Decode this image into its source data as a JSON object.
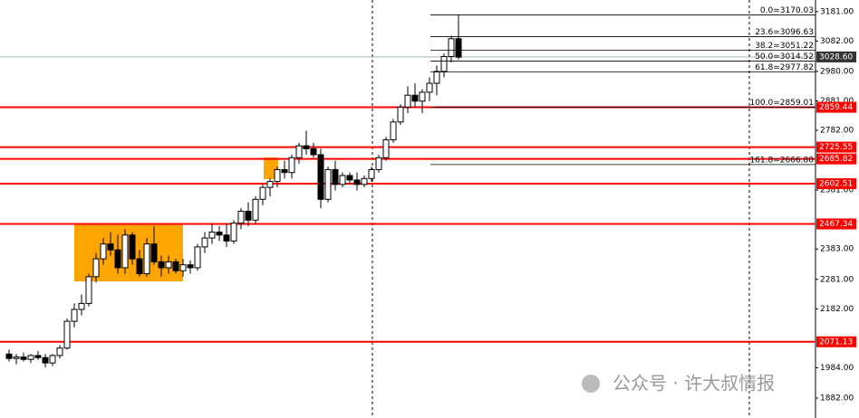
{
  "chart_data": {
    "type": "candlestick",
    "candles": [
      [
        2030,
        2045,
        2005,
        2015
      ],
      [
        2015,
        2030,
        1995,
        2020
      ],
      [
        2020,
        2035,
        2005,
        2012
      ],
      [
        2012,
        2030,
        2000,
        2025
      ],
      [
        2025,
        2040,
        2010,
        2018
      ],
      [
        2018,
        2030,
        1985,
        2000
      ],
      [
        2000,
        2030,
        1990,
        2025
      ],
      [
        2025,
        2060,
        2015,
        2050
      ],
      [
        2050,
        2150,
        2045,
        2140
      ],
      [
        2140,
        2200,
        2120,
        2180
      ],
      [
        2180,
        2230,
        2160,
        2200
      ],
      [
        2200,
        2300,
        2190,
        2290
      ],
      [
        2290,
        2370,
        2270,
        2350
      ],
      [
        2350,
        2420,
        2330,
        2400
      ],
      [
        2400,
        2440,
        2360,
        2380
      ],
      [
        2380,
        2430,
        2300,
        2320
      ],
      [
        2320,
        2450,
        2300,
        2430
      ],
      [
        2430,
        2440,
        2330,
        2350
      ],
      [
        2350,
        2380,
        2290,
        2300
      ],
      [
        2300,
        2420,
        2290,
        2400
      ],
      [
        2400,
        2460,
        2330,
        2340
      ],
      [
        2340,
        2360,
        2290,
        2320
      ],
      [
        2320,
        2360,
        2300,
        2340
      ],
      [
        2340,
        2350,
        2300,
        2310
      ],
      [
        2310,
        2350,
        2290,
        2330
      ],
      [
        2330,
        2345,
        2300,
        2320
      ],
      [
        2320,
        2400,
        2310,
        2390
      ],
      [
        2390,
        2440,
        2370,
        2420
      ],
      [
        2420,
        2470,
        2400,
        2440
      ],
      [
        2440,
        2460,
        2410,
        2430
      ],
      [
        2430,
        2470,
        2390,
        2410
      ],
      [
        2410,
        2480,
        2400,
        2470
      ],
      [
        2470,
        2520,
        2450,
        2510
      ],
      [
        2510,
        2540,
        2460,
        2480
      ],
      [
        2480,
        2560,
        2470,
        2550
      ],
      [
        2550,
        2600,
        2530,
        2590
      ],
      [
        2590,
        2620,
        2560,
        2610
      ],
      [
        2610,
        2660,
        2590,
        2650
      ],
      [
        2650,
        2680,
        2620,
        2640
      ],
      [
        2640,
        2700,
        2620,
        2690
      ],
      [
        2690,
        2740,
        2670,
        2730
      ],
      [
        2730,
        2780,
        2700,
        2720
      ],
      [
        2720,
        2740,
        2690,
        2700
      ],
      [
        2700,
        2720,
        2520,
        2550
      ],
      [
        2550,
        2660,
        2540,
        2650
      ],
      [
        2650,
        2680,
        2580,
        2600
      ],
      [
        2600,
        2640,
        2590,
        2630
      ],
      [
        2630,
        2640,
        2600,
        2615
      ],
      [
        2615,
        2640,
        2580,
        2600
      ],
      [
        2600,
        2630,
        2590,
        2620
      ],
      [
        2620,
        2660,
        2610,
        2650
      ],
      [
        2650,
        2700,
        2640,
        2690
      ],
      [
        2690,
        2760,
        2680,
        2750
      ],
      [
        2750,
        2820,
        2740,
        2810
      ],
      [
        2810,
        2870,
        2800,
        2860
      ],
      [
        2860,
        2930,
        2840,
        2900
      ],
      [
        2900,
        2940,
        2860,
        2880
      ],
      [
        2880,
        2920,
        2840,
        2910
      ],
      [
        2910,
        2960,
        2880,
        2940
      ],
      [
        2940,
        3000,
        2900,
        2980
      ],
      [
        2980,
        3040,
        2960,
        3030
      ],
      [
        3030,
        3100,
        3010,
        3090
      ],
      [
        3090,
        3170,
        3020,
        3028
      ]
    ],
    "up_color": "#ffffff",
    "down_color": "#000000",
    "ylim": [
      1815,
      3220
    ],
    "yticks": [
      {
        "value": 3181,
        "label": "3181.00"
      },
      {
        "value": 3082,
        "label": "3082.00"
      },
      {
        "value": 2980,
        "label": "2980.00"
      },
      {
        "value": 2881,
        "label": "2881.00"
      },
      {
        "value": 2782,
        "label": "2782.00"
      },
      {
        "value": 2581,
        "label": "2581.00"
      },
      {
        "value": 2383,
        "label": "2383.00"
      },
      {
        "value": 2281,
        "label": "2281.00"
      },
      {
        "value": 2182,
        "label": "2182.00"
      },
      {
        "value": 1984,
        "label": "1984.00"
      },
      {
        "value": 1882,
        "label": "1882.00"
      }
    ],
    "levels": [
      2859.44,
      2725.55,
      2685.82,
      2602.51,
      2467.34,
      2071.13
    ],
    "level_color": "#ff0000",
    "current_price": {
      "value": 3028.6,
      "label": "3028.60"
    },
    "fib": [
      {
        "value": 3170.03,
        "label": "0.0=3170.03"
      },
      {
        "value": 3096.63,
        "label": "23.6=3096.63"
      },
      {
        "value": 3051.22,
        "label": "38.2=3051.22"
      },
      {
        "value": 3014.52,
        "label": "50.0=3014.52"
      },
      {
        "value": 2977.82,
        "label": "61.8=2977.82"
      },
      {
        "value": 2859.01,
        "label": "100.0=2859.01"
      },
      {
        "value": 2666.8,
        "label": "161.8=2666.80"
      }
    ]
  },
  "watermark": "公众号 · 许大叔情报"
}
